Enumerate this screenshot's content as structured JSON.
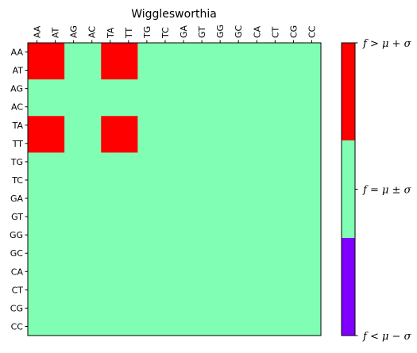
{
  "chart_data": {
    "type": "heatmap",
    "title": "Wigglesworthia",
    "x_labels": [
      "AA",
      "AT",
      "AG",
      "AC",
      "TA",
      "TT",
      "TG",
      "TC",
      "GA",
      "GT",
      "GG",
      "GC",
      "CA",
      "CT",
      "CG",
      "CC"
    ],
    "y_labels": [
      "AA",
      "AT",
      "AG",
      "AC",
      "TA",
      "TT",
      "TG",
      "TC",
      "GA",
      "GT",
      "GG",
      "GC",
      "CA",
      "CT",
      "CG",
      "CC"
    ],
    "cell_classes_note_removed": true,
    "values": [
      [
        1,
        1,
        0,
        0,
        1,
        1,
        0,
        0,
        0,
        0,
        0,
        0,
        0,
        0,
        0,
        0
      ],
      [
        1,
        1,
        0,
        0,
        1,
        1,
        0,
        0,
        0,
        0,
        0,
        0,
        0,
        0,
        0,
        0
      ],
      [
        0,
        0,
        0,
        0,
        0,
        0,
        0,
        0,
        0,
        0,
        0,
        0,
        0,
        0,
        0,
        0
      ],
      [
        0,
        0,
        0,
        0,
        0,
        0,
        0,
        0,
        0,
        0,
        0,
        0,
        0,
        0,
        0,
        0
      ],
      [
        1,
        1,
        0,
        0,
        1,
        1,
        0,
        0,
        0,
        0,
        0,
        0,
        0,
        0,
        0,
        0
      ],
      [
        1,
        1,
        0,
        0,
        1,
        1,
        0,
        0,
        0,
        0,
        0,
        0,
        0,
        0,
        0,
        0
      ],
      [
        0,
        0,
        0,
        0,
        0,
        0,
        0,
        0,
        0,
        0,
        0,
        0,
        0,
        0,
        0,
        0
      ],
      [
        0,
        0,
        0,
        0,
        0,
        0,
        0,
        0,
        0,
        0,
        0,
        0,
        0,
        0,
        0,
        0
      ],
      [
        0,
        0,
        0,
        0,
        0,
        0,
        0,
        0,
        0,
        0,
        0,
        0,
        0,
        0,
        0,
        0
      ],
      [
        0,
        0,
        0,
        0,
        0,
        0,
        0,
        0,
        0,
        0,
        0,
        0,
        0,
        0,
        0,
        0
      ],
      [
        0,
        0,
        0,
        0,
        0,
        0,
        0,
        0,
        0,
        0,
        0,
        0,
        0,
        0,
        0,
        0
      ],
      [
        0,
        0,
        0,
        0,
        0,
        0,
        0,
        0,
        0,
        0,
        0,
        0,
        0,
        0,
        0,
        0
      ],
      [
        0,
        0,
        0,
        0,
        0,
        0,
        0,
        0,
        0,
        0,
        0,
        0,
        0,
        0,
        0,
        0
      ],
      [
        0,
        0,
        0,
        0,
        0,
        0,
        0,
        0,
        0,
        0,
        0,
        0,
        0,
        0,
        0,
        0
      ],
      [
        0,
        0,
        0,
        0,
        0,
        0,
        0,
        0,
        0,
        0,
        0,
        0,
        0,
        0,
        0,
        0
      ],
      [
        0,
        0,
        0,
        0,
        0,
        0,
        0,
        0,
        0,
        0,
        0,
        0,
        0,
        0,
        0,
        0
      ]
    ],
    "colorbar": {
      "levels": [
        {
          "value": 1,
          "label": "f > μ + σ",
          "color": "#ff0000"
        },
        {
          "value": 0,
          "label": "f = μ ± σ",
          "color": "#80ffb4"
        },
        {
          "value": -1,
          "label": "f < μ − σ",
          "color": "#8000ff"
        }
      ]
    },
    "x_ticks_position": "top",
    "x_tick_rotation": "vertical",
    "grid": false,
    "legend": "colorbar-right"
  }
}
